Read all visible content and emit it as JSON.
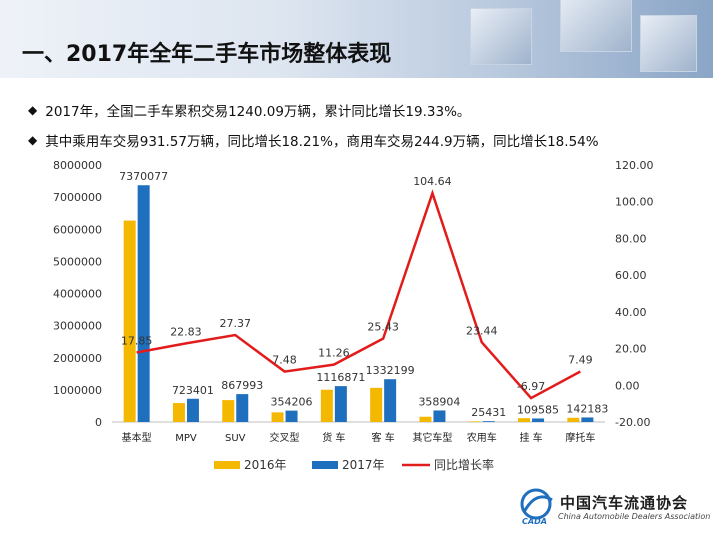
{
  "slide": {
    "title": "一、2017年全年二手车市场整体表现",
    "bullets": [
      "2017年，全国二手车累积交易1240.09万辆，累计同比增长19.33%。",
      "其中乘用车交易931.57万辆，同比增长18.21%，商用车交易244.9万辆，同比增长18.54%"
    ],
    "bullet_icon": "diamond-icon"
  },
  "logo": {
    "cn": "中国汽车流通协会",
    "abbr": "CADA",
    "en": "China Automobile Dealers Association"
  },
  "colors": {
    "series_2016": "#f5b800",
    "series_2017": "#1f6fbf",
    "growth_line": "#e21b1b"
  },
  "chart_data": {
    "type": "bar",
    "categories": [
      "基本型",
      "MPV",
      "SUV",
      "交叉型",
      "货 车",
      "客 车",
      "其它车型",
      "农用车",
      "挂 车",
      "摩托车"
    ],
    "series": [
      {
        "name": "2016年",
        "type": "bar",
        "axis": "left",
        "values": [
          6270000,
          589000,
          682000,
          300000,
          1004000,
          1063000,
          164000,
          20600,
          118000,
          132000
        ]
      },
      {
        "name": "2017年",
        "type": "bar",
        "axis": "left",
        "values": [
          7370077,
          723401,
          867993,
          354206,
          1116871,
          1332199,
          358904,
          25431,
          109585,
          142183
        ]
      },
      {
        "name": "同比增长率",
        "type": "line",
        "axis": "right",
        "values": [
          17.85,
          22.83,
          27.37,
          7.48,
          11.26,
          25.43,
          104.64,
          23.44,
          -6.97,
          7.49
        ]
      }
    ],
    "bar_labels_2017": [
      "7370077",
      "723401",
      "867993",
      "354206",
      "1116871",
      "1332199",
      "358904",
      "25431",
      "109585",
      "142183"
    ],
    "growth_labels": [
      "17.85",
      "22.83",
      "27.37",
      "7.48",
      "11.26",
      "25.43",
      "104.64",
      "23.44",
      "-6.97",
      "7.49"
    ],
    "y_left": {
      "min": 0,
      "max": 8000000,
      "ticks": [
        "0",
        "1000000",
        "2000000",
        "3000000",
        "4000000",
        "5000000",
        "6000000",
        "7000000",
        "8000000"
      ]
    },
    "y_right": {
      "min": -20,
      "max": 120,
      "ticks": [
        "-20.00",
        "0.00",
        "20.00",
        "40.00",
        "60.00",
        "80.00",
        "100.00",
        "120.00"
      ]
    },
    "legend_position": "bottom",
    "grid": false
  }
}
